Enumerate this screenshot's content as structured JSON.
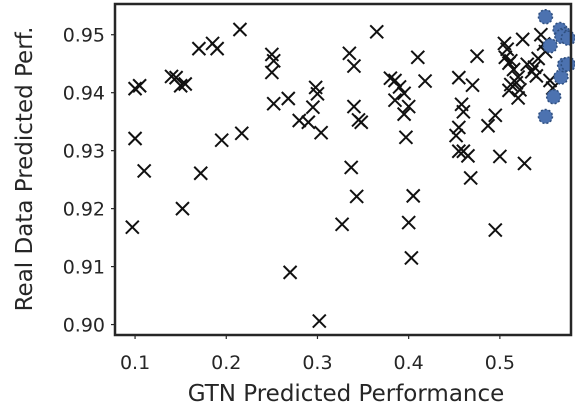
{
  "chart_data": {
    "type": "scatter",
    "xlabel": "GTN Predicted Performance",
    "ylabel": "Real Data Predicted Perf.",
    "xlim": [
      0.078,
      0.578
    ],
    "ylim": [
      0.8982,
      0.9553
    ],
    "xticks": [
      0.1,
      0.2,
      0.3,
      0.4,
      0.5
    ],
    "xtick_labels": [
      "0.1",
      "0.2",
      "0.3",
      "0.4",
      "0.5"
    ],
    "yticks": [
      0.9,
      0.91,
      0.92,
      0.93,
      0.94,
      0.95
    ],
    "ytick_labels": [
      "0.90",
      "0.91",
      "0.92",
      "0.93",
      "0.94",
      "0.95"
    ],
    "grid": false,
    "colors": {
      "cross": "#111111",
      "highlight": "#4c72b0"
    },
    "series": [
      {
        "marker": "x",
        "points": [
          [
            0.1,
            0.9321
          ],
          [
            0.1,
            0.9407
          ],
          [
            0.105,
            0.9412
          ],
          [
            0.11,
            0.9265
          ],
          [
            0.097,
            0.9168
          ],
          [
            0.14,
            0.9428
          ],
          [
            0.145,
            0.9426
          ],
          [
            0.15,
            0.9412
          ],
          [
            0.155,
            0.9415
          ],
          [
            0.152,
            0.92
          ],
          [
            0.17,
            0.9476
          ],
          [
            0.185,
            0.9485
          ],
          [
            0.19,
            0.9476
          ],
          [
            0.195,
            0.9318
          ],
          [
            0.172,
            0.9261
          ],
          [
            0.215,
            0.9509
          ],
          [
            0.217,
            0.933
          ],
          [
            0.25,
            0.9466
          ],
          [
            0.252,
            0.9455
          ],
          [
            0.25,
            0.9435
          ],
          [
            0.252,
            0.9381
          ],
          [
            0.268,
            0.939
          ],
          [
            0.28,
            0.9352
          ],
          [
            0.29,
            0.9349
          ],
          [
            0.295,
            0.9375
          ],
          [
            0.298,
            0.9409
          ],
          [
            0.3,
            0.9398
          ],
          [
            0.304,
            0.9331
          ],
          [
            0.27,
            0.909
          ],
          [
            0.302,
            0.9006
          ],
          [
            0.335,
            0.9468
          ],
          [
            0.337,
            0.9271
          ],
          [
            0.34,
            0.9446
          ],
          [
            0.34,
            0.9376
          ],
          [
            0.345,
            0.9353
          ],
          [
            0.348,
            0.9349
          ],
          [
            0.343,
            0.9221
          ],
          [
            0.327,
            0.9173
          ],
          [
            0.365,
            0.9505
          ],
          [
            0.38,
            0.9425
          ],
          [
            0.385,
            0.9421
          ],
          [
            0.39,
            0.941
          ],
          [
            0.385,
            0.9387
          ],
          [
            0.395,
            0.9399
          ],
          [
            0.395,
            0.9363
          ],
          [
            0.4,
            0.9376
          ],
          [
            0.397,
            0.9323
          ],
          [
            0.41,
            0.9461
          ],
          [
            0.418,
            0.942
          ],
          [
            0.405,
            0.9222
          ],
          [
            0.4,
            0.9176
          ],
          [
            0.403,
            0.9115
          ],
          [
            0.455,
            0.9426
          ],
          [
            0.458,
            0.938
          ],
          [
            0.46,
            0.9367
          ],
          [
            0.455,
            0.934
          ],
          [
            0.452,
            0.9326
          ],
          [
            0.455,
            0.9299
          ],
          [
            0.465,
            0.9291
          ],
          [
            0.46,
            0.9299
          ],
          [
            0.468,
            0.9253
          ],
          [
            0.475,
            0.9463
          ],
          [
            0.47,
            0.9413
          ],
          [
            0.487,
            0.9343
          ],
          [
            0.495,
            0.9361
          ],
          [
            0.5,
            0.929
          ],
          [
            0.495,
            0.9163
          ],
          [
            0.505,
            0.9485
          ],
          [
            0.508,
            0.9475
          ],
          [
            0.512,
            0.9455
          ],
          [
            0.51,
            0.9451
          ],
          [
            0.506,
            0.9461
          ],
          [
            0.515,
            0.944
          ],
          [
            0.52,
            0.9427
          ],
          [
            0.518,
            0.9417
          ],
          [
            0.51,
            0.9404
          ],
          [
            0.512,
            0.9414
          ],
          [
            0.522,
            0.9405
          ],
          [
            0.52,
            0.9391
          ],
          [
            0.525,
            0.9492
          ],
          [
            0.53,
            0.9449
          ],
          [
            0.535,
            0.9436
          ],
          [
            0.54,
            0.9429
          ],
          [
            0.538,
            0.9444
          ],
          [
            0.542,
            0.9459
          ],
          [
            0.545,
            0.95
          ],
          [
            0.548,
            0.9484
          ],
          [
            0.55,
            0.9471
          ],
          [
            0.527,
            0.9278
          ],
          [
            0.555,
            0.9421
          ],
          [
            0.558,
            0.9408
          ]
        ]
      },
      {
        "marker": "o",
        "points": [
          [
            0.55,
            0.9531
          ],
          [
            0.566,
            0.9509
          ],
          [
            0.571,
            0.95
          ],
          [
            0.568,
            0.9497
          ],
          [
            0.575,
            0.9494
          ],
          [
            0.555,
            0.9481
          ],
          [
            0.567,
            0.9427
          ],
          [
            0.571,
            0.9448
          ],
          [
            0.575,
            0.9449
          ],
          [
            0.559,
            0.9393
          ],
          [
            0.55,
            0.9359
          ]
        ]
      }
    ]
  }
}
